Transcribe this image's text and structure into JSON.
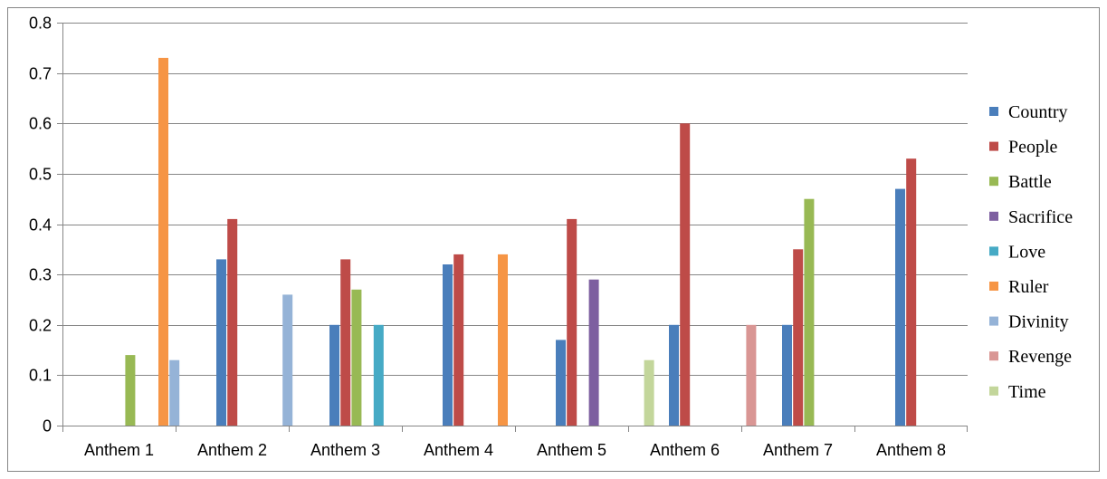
{
  "chart_data": {
    "type": "bar",
    "categories": [
      "Anthem 1",
      "Anthem 2",
      "Anthem 3",
      "Anthem 4",
      "Anthem 5",
      "Anthem 6",
      "Anthem 7",
      "Anthem 8"
    ],
    "series": [
      {
        "name": "Country",
        "color": "#4a7ebb",
        "values": [
          0,
          0.33,
          0.2,
          0.32,
          0.17,
          0.2,
          0.2,
          0.47
        ]
      },
      {
        "name": "People",
        "color": "#be4b48",
        "values": [
          0,
          0.41,
          0.33,
          0.34,
          0.41,
          0.6,
          0.35,
          0.53
        ]
      },
      {
        "name": "Battle",
        "color": "#98b954",
        "values": [
          0.14,
          0,
          0.27,
          0,
          0,
          0,
          0.45,
          0
        ]
      },
      {
        "name": "Sacrifice",
        "color": "#7d5fa0",
        "values": [
          0,
          0,
          0,
          0,
          0.29,
          0,
          0,
          0
        ]
      },
      {
        "name": "Love",
        "color": "#46aac5",
        "values": [
          0,
          0,
          0.2,
          0,
          0,
          0,
          0,
          0
        ]
      },
      {
        "name": "Ruler",
        "color": "#f69545",
        "values": [
          0.73,
          0,
          0,
          0.34,
          0,
          0,
          0,
          0
        ]
      },
      {
        "name": "Divinity",
        "color": "#95b3d7",
        "values": [
          0.13,
          0.26,
          0,
          0,
          0,
          0,
          0,
          0
        ]
      },
      {
        "name": "Revenge",
        "color": "#d99694",
        "values": [
          0,
          0,
          0,
          0,
          0,
          0.2,
          0,
          0
        ]
      },
      {
        "name": "Time",
        "color": "#c3d69b",
        "values": [
          0,
          0,
          0,
          0,
          0.13,
          0,
          0,
          0
        ]
      }
    ],
    "yticks": [
      "0",
      "0.1",
      "0.2",
      "0.3",
      "0.4",
      "0.5",
      "0.6",
      "0.7",
      "0.8"
    ],
    "ylim": [
      0,
      0.8
    ],
    "title": "",
    "xlabel": "",
    "ylabel": "",
    "grid": true,
    "legend": "right"
  }
}
